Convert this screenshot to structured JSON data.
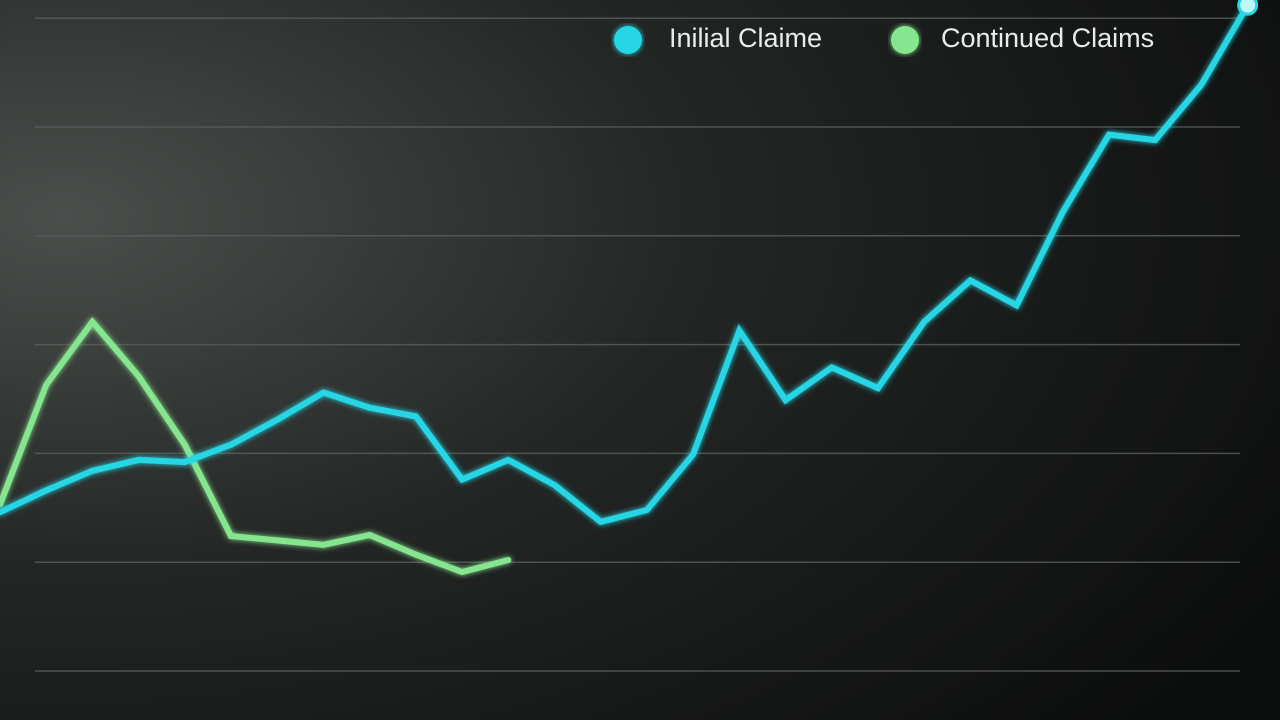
{
  "chart_data": {
    "type": "line",
    "x": [
      0,
      1,
      2,
      3,
      4,
      5,
      6,
      7,
      8,
      9,
      10,
      11,
      12,
      13,
      14,
      15,
      16,
      17,
      18,
      19,
      20,
      21,
      22,
      23,
      24,
      25,
      26,
      27
    ],
    "xlim": [
      0,
      27.7
    ],
    "ylim": [
      0,
      6.2
    ],
    "yticks": [
      0,
      1,
      2,
      3,
      4,
      5,
      6
    ],
    "grid": true,
    "legend": "top-right",
    "series": [
      {
        "name": "Inilial Claime",
        "color": "#27d6e4",
        "values": [
          1.46,
          1.66,
          1.84,
          1.94,
          1.92,
          2.08,
          2.31,
          2.56,
          2.42,
          2.34,
          1.76,
          1.94,
          1.71,
          1.37,
          1.48,
          1.99,
          3.13,
          2.49,
          2.79,
          2.6,
          3.21,
          3.59,
          3.36,
          4.22,
          4.93,
          4.88,
          5.39,
          6.12
        ]
      },
      {
        "name": "Continued Claims",
        "color": "#86e690",
        "values": [
          1.53,
          2.63,
          3.21,
          2.71,
          2.08,
          1.24,
          1.2,
          1.16,
          1.25,
          1.07,
          0.91,
          1.02,
          null,
          null,
          null,
          null,
          null,
          null,
          null,
          null,
          null,
          null,
          null,
          null,
          null,
          null,
          null,
          null
        ]
      }
    ]
  }
}
